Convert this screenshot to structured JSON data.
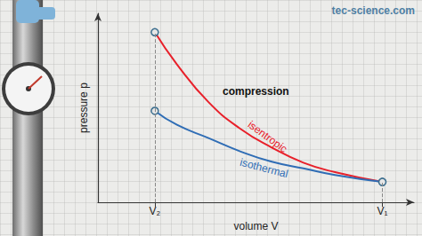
{
  "chart_data": {
    "type": "line",
    "title": "compression",
    "source": "tec-science.com",
    "xlabel": "volume V",
    "ylabel": "pressure p",
    "x": [
      1.8,
      2.5,
      3.5,
      4.5,
      5.5,
      6.5,
      7.5,
      9
    ],
    "series": [
      {
        "name": "isentropic",
        "color": "#e8202a",
        "marker": "circle",
        "values": [
          9.0,
          7.3,
          5.3,
          3.9,
          2.9,
          2.1,
          1.6,
          1.08
        ]
      },
      {
        "name": "isothermal",
        "color": "#2f6db5",
        "marker": "circle",
        "values": [
          4.84,
          4.1,
          3.4,
          2.7,
          2.15,
          1.8,
          1.45,
          1.08
        ]
      }
    ],
    "xlim": [
      0,
      10
    ],
    "ylim": [
      0,
      10
    ],
    "xticks": [
      {
        "value": 1.8,
        "label": "V₂"
      },
      {
        "value": 9,
        "label": "V₁"
      }
    ],
    "tick_labels": "x",
    "grid": false
  }
}
